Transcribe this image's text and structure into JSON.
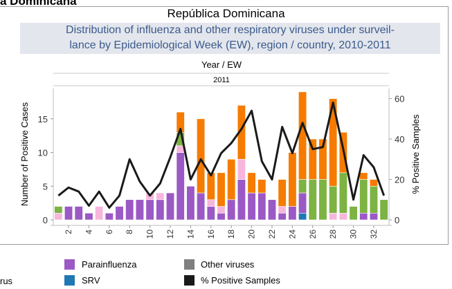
{
  "page_header": "a Dominicana",
  "chart_data": {
    "type": "bar",
    "title": "República Dominicana",
    "subtitle_lines": [
      "Distribution of influenza and other respiratory viruses under surveil-",
      "lance by Epidemiological Week (EW), region / country, 2010-2011"
    ],
    "header_label": "Year  /  EW",
    "year_label": "2011",
    "ylabel": "Number of Positive Cases",
    "y2label": "% Positive Samples",
    "ylim": [
      0,
      19.5
    ],
    "y2lim": [
      0,
      65
    ],
    "yticks": [
      0,
      5,
      10,
      15
    ],
    "y2ticks": [
      0,
      20,
      40,
      60
    ],
    "x_tick_labels": [
      "2",
      "4",
      "6",
      "8",
      "10",
      "12",
      "14",
      "16",
      "18",
      "20",
      "22",
      "24",
      "26",
      "28",
      "30",
      "32"
    ],
    "weeks": [
      1,
      2,
      3,
      4,
      5,
      6,
      7,
      8,
      9,
      10,
      11,
      12,
      13,
      14,
      15,
      16,
      17,
      18,
      19,
      20,
      21,
      22,
      23,
      24,
      25,
      26,
      27,
      28,
      29,
      30,
      31,
      32,
      33
    ],
    "colors": {
      "Parainfluenza": "#9b59c5",
      "RSV_pink": "#f7b6dc",
      "Influenza_green": "#7cb342",
      "Influenza_orange": "#f57c00",
      "SRV": "#1f77b4",
      "Other viruses": "#808080",
      "% Positive Samples": "#1a1a1a"
    },
    "series": [
      {
        "name": "SRV",
        "key": "SRV",
        "values": [
          0,
          0,
          0,
          0,
          0,
          0,
          0,
          0,
          0,
          0,
          0,
          0,
          0,
          0,
          0,
          0,
          0,
          0,
          0,
          0,
          0,
          0,
          0,
          0,
          1,
          0,
          0,
          0,
          0,
          0,
          0,
          0,
          0
        ]
      },
      {
        "name": "Parainfluenza",
        "key": "Parainfluenza",
        "values": [
          0,
          2,
          2,
          1,
          0,
          1,
          2,
          3,
          3,
          3,
          3,
          4,
          10,
          5,
          4,
          2,
          1,
          3,
          6,
          4,
          4,
          3,
          1,
          2,
          3,
          0,
          0,
          0,
          0,
          0,
          1,
          1,
          0
        ]
      },
      {
        "key": "RSV_pink",
        "values": [
          1,
          0,
          0,
          0,
          2,
          0,
          0,
          0,
          0,
          1,
          1,
          0,
          1,
          0,
          0,
          1,
          1,
          0,
          3,
          0,
          0,
          0,
          1,
          0,
          0,
          0,
          0,
          1,
          1,
          0,
          0,
          0,
          0
        ]
      },
      {
        "key": "Influenza_green",
        "values": [
          1,
          0,
          0,
          0,
          0,
          0,
          0,
          0,
          0,
          0,
          0,
          0,
          2,
          0,
          0,
          0,
          0,
          0,
          0,
          0,
          0,
          0,
          0,
          0,
          2,
          6,
          6,
          4,
          6,
          2,
          5,
          4,
          3
        ]
      },
      {
        "key": "Influenza_orange",
        "values": [
          0,
          0,
          0,
          0,
          0,
          0,
          0,
          0,
          0,
          0,
          0,
          0,
          3,
          0,
          11,
          4,
          5,
          6,
          8,
          3,
          2,
          0,
          4,
          8,
          13,
          6,
          6,
          13,
          6,
          0,
          1,
          1,
          0
        ]
      },
      {
        "name": "Other viruses",
        "key": "Other viruses",
        "values": [
          0,
          0,
          0,
          0,
          0,
          0,
          0,
          0,
          0,
          0,
          0,
          0,
          0,
          0,
          0,
          0,
          0,
          0,
          0,
          0,
          0,
          0,
          0,
          0,
          0,
          0,
          0,
          0,
          0,
          0,
          0,
          0,
          0
        ]
      }
    ],
    "line": {
      "name": "% Positive Samples",
      "key": "% Positive Samples",
      "values": [
        12,
        16,
        14,
        7,
        14,
        6,
        12,
        30,
        19,
        12,
        18,
        31,
        45,
        20,
        30,
        22,
        33,
        38,
        45,
        54,
        29,
        20,
        46,
        33,
        48,
        35,
        36,
        58,
        35,
        10,
        32,
        26,
        12
      ]
    }
  },
  "legend": [
    {
      "label": "rus",
      "color": null
    },
    {
      "label": "Parainfluenza",
      "color": "#9b59c5"
    },
    {
      "label": "SRV",
      "color": "#1f77b4"
    },
    {
      "label": "Other viruses",
      "color": "#808080"
    },
    {
      "label": "% Positive Samples",
      "color": "#1a1a1a"
    }
  ]
}
